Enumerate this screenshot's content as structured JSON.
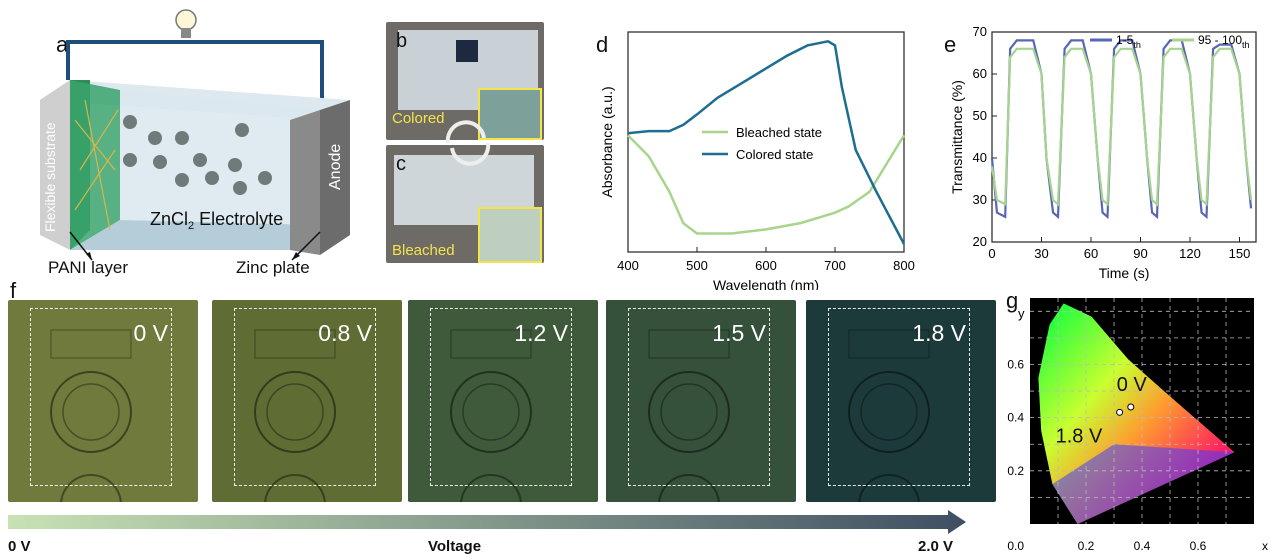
{
  "panel_letters": {
    "a": "a",
    "b": "b",
    "c": "c",
    "d": "d",
    "e": "e",
    "f": "f",
    "g": "g"
  },
  "schematic": {
    "substrate": "Flexible substrate",
    "electrolyte_main": "ZnCl",
    "electrolyte_sub": "2",
    "electrolyte_tail": " Electrolyte",
    "anode": "Anode",
    "pani": "PANI layer",
    "zinc": "Zinc plate"
  },
  "photos": {
    "colored": "Colored",
    "bleached": "Bleached"
  },
  "colors": {
    "bleached": "#a8d58b",
    "colored": "#1d6e8f",
    "cyc1": "#5966b5",
    "cyc2": "#a6d48f",
    "arrow_start": "#c9e2b4",
    "arrow_end": "#3f4f63"
  },
  "voltage_series": [
    {
      "label": "0 V",
      "tint": "#6f7a3c"
    },
    {
      "label": "0.8 V",
      "tint": "#5f6c33"
    },
    {
      "label": "1.2 V",
      "tint": "#3f5a3a"
    },
    {
      "label": "1.5 V",
      "tint": "#35503b"
    },
    {
      "label": "1.8 V",
      "tint": "#1d3a3a"
    }
  ],
  "voltage_axis": {
    "start": "0 V",
    "mid": "Voltage",
    "end": "2.0  V"
  },
  "chart_data": [
    {
      "id": "d",
      "type": "line",
      "xlabel": "Wavelength (nm)",
      "ylabel": "Absorbance (a.u.)",
      "xlim": [
        400,
        800
      ],
      "xticks": [
        400,
        500,
        600,
        700,
        800
      ],
      "legend_position": "center",
      "series": [
        {
          "name": "Bleached state",
          "x": [
            400,
            430,
            460,
            480,
            500,
            550,
            600,
            650,
            700,
            720,
            750,
            800
          ],
          "y": [
            0.52,
            0.42,
            0.25,
            0.1,
            0.05,
            0.05,
            0.07,
            0.1,
            0.15,
            0.18,
            0.25,
            0.52
          ]
        },
        {
          "name": "Colored state",
          "x": [
            400,
            430,
            460,
            480,
            500,
            530,
            560,
            600,
            630,
            660,
            690,
            700,
            710,
            730,
            760,
            800
          ],
          "y": [
            0.53,
            0.54,
            0.54,
            0.57,
            0.62,
            0.7,
            0.76,
            0.84,
            0.9,
            0.95,
            0.97,
            0.95,
            0.75,
            0.45,
            0.25,
            0.0
          ]
        }
      ]
    },
    {
      "id": "e",
      "type": "line",
      "xlabel": "Time (s)",
      "ylabel": "Transmittance (%)",
      "xlim": [
        0,
        160
      ],
      "ylim": [
        20,
        70
      ],
      "xticks": [
        0,
        30,
        60,
        90,
        120,
        150
      ],
      "yticks": [
        20,
        30,
        40,
        50,
        60,
        70
      ],
      "legend_position": "top",
      "series": [
        {
          "name": "1-5",
          "subscript": "th",
          "x": [
            0,
            3,
            8,
            11,
            15,
            20,
            25,
            30,
            33,
            37,
            40,
            44,
            48,
            55,
            60,
            64,
            67,
            70,
            74,
            78,
            85,
            90,
            94,
            97,
            100,
            104,
            108,
            115,
            120,
            124,
            127,
            130,
            134,
            138,
            145,
            150,
            154,
            157
          ],
          "y": [
            40,
            27,
            26,
            66,
            68,
            68,
            68,
            60,
            40,
            27,
            26,
            66,
            68,
            68,
            60,
            40,
            27,
            26,
            66,
            68,
            68,
            60,
            40,
            27,
            26,
            66,
            68,
            68,
            60,
            40,
            27,
            26,
            66,
            67,
            67,
            60,
            40,
            28
          ]
        },
        {
          "name": "95 - 100",
          "subscript": "th",
          "x": [
            0,
            3,
            8,
            11,
            15,
            20,
            25,
            30,
            33,
            37,
            40,
            44,
            48,
            55,
            60,
            64,
            67,
            70,
            74,
            78,
            85,
            90,
            94,
            97,
            100,
            104,
            108,
            115,
            120,
            124,
            127,
            130,
            134,
            138,
            145,
            150,
            154,
            157
          ],
          "y": [
            38,
            30,
            29,
            64,
            66,
            66,
            66,
            60,
            40,
            30,
            29,
            64,
            66,
            66,
            60,
            40,
            30,
            29,
            64,
            66,
            66,
            60,
            40,
            30,
            29,
            64,
            66,
            66,
            60,
            40,
            30,
            29,
            64,
            66,
            66,
            60,
            40,
            30
          ]
        }
      ]
    },
    {
      "id": "g",
      "type": "scatter",
      "xlabel": "x",
      "ylabel": "y",
      "xticks": [
        0.2,
        0.4,
        0.6
      ],
      "yticks": [
        0.2,
        0.4,
        0.6
      ],
      "origin_label": "0.0",
      "points": [
        {
          "label": "0 V",
          "x": 0.36,
          "y": 0.44
        },
        {
          "label": "1.8 V",
          "x": 0.32,
          "y": 0.42
        }
      ]
    }
  ]
}
